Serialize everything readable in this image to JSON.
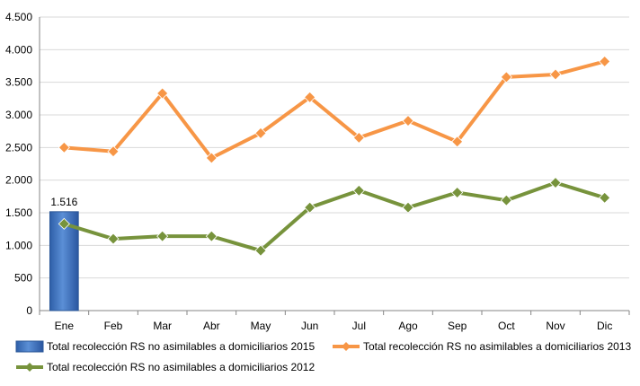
{
  "chart_data": {
    "type": "bar+line",
    "title": "",
    "xlabel": "",
    "ylabel": "",
    "ylim": [
      0,
      4500
    ],
    "yticks": [
      0,
      500,
      1000,
      1500,
      2000,
      2500,
      3000,
      3500,
      4000,
      4500
    ],
    "ytick_labels": [
      "0",
      "500",
      "1.000",
      "1.500",
      "2.000",
      "2.500",
      "3.000",
      "3.500",
      "4.000",
      "4.500"
    ],
    "categories": [
      "Ene",
      "Feb",
      "Mar",
      "Abr",
      "May",
      "Jun",
      "Jul",
      "Ago",
      "Sep",
      "Oct",
      "Nov",
      "Dic"
    ],
    "grid": "horizontal",
    "legend_position": "bottom",
    "series": [
      {
        "name": "Total recolección RS no asimilables a domiciliarios 2015",
        "kind": "bar",
        "color": "#3E76C3",
        "values": [
          1516,
          null,
          null,
          null,
          null,
          null,
          null,
          null,
          null,
          null,
          null,
          null
        ],
        "data_labels": [
          "1.516",
          "",
          "",
          "",
          "",
          "",
          "",
          "",
          "",
          "",
          "",
          ""
        ]
      },
      {
        "name": "Total recolección RS no asimilables a domiciliarios 2013",
        "kind": "line",
        "color": "#F79646",
        "values": [
          2500,
          2440,
          3330,
          2340,
          2720,
          3270,
          2650,
          2910,
          2590,
          3580,
          3620,
          3820
        ]
      },
      {
        "name": "Total recolección RS no asimilables a domiciliarios 2012",
        "kind": "line",
        "color": "#77933C",
        "values": [
          1330,
          1100,
          1140,
          1140,
          920,
          1580,
          1840,
          1580,
          1810,
          1690,
          1960,
          1730
        ]
      }
    ]
  }
}
